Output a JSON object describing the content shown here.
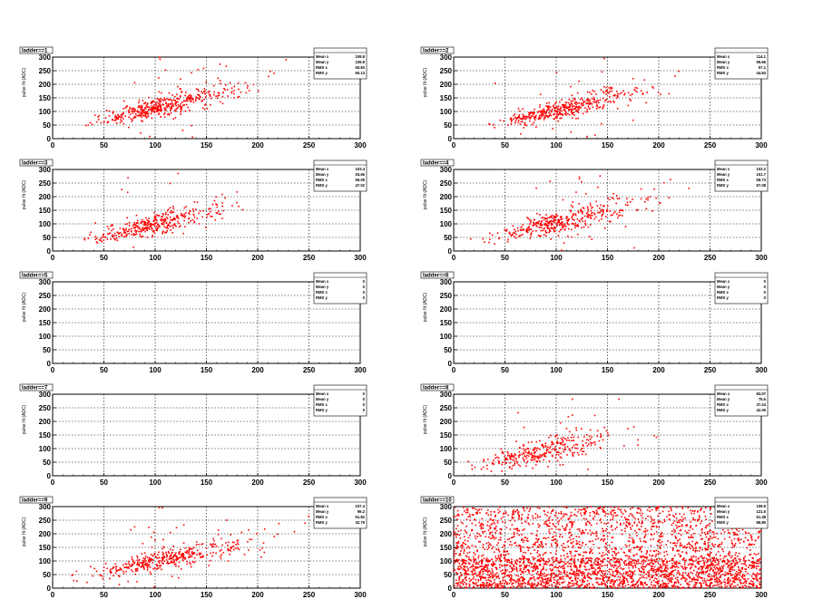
{
  "chart_data": [
    {
      "type": "scatter",
      "title": "ladder==1",
      "ylabel": "pulse fit (ADC)",
      "xlim": [
        0,
        300
      ],
      "ylim": [
        0,
        300
      ],
      "x_ticks": [
        "0",
        "50",
        "100",
        "150",
        "200",
        "250",
        "300"
      ],
      "y_ticks": [
        "0",
        "50",
        "100",
        "150",
        "200",
        "250",
        "300"
      ],
      "stats": {
        "labels": [
          "Mean x",
          "Mean y",
          "RMS x",
          "RMS y"
        ],
        "values": [
          "109.8",
          "109.8",
          "60.83",
          "60.13"
        ]
      },
      "trend": {
        "x0": 20,
        "y0": 40,
        "slope": 0.92,
        "x_mean": 85,
        "x_sd": 45,
        "y_sd": 18,
        "n": 470,
        "seed": 11
      },
      "color": "#ff0000"
    },
    {
      "type": "scatter",
      "title": "ladder==2",
      "ylabel": "pulse fit (ADC)",
      "xlim": [
        0,
        300
      ],
      "ylim": [
        0,
        300
      ],
      "x_ticks": [
        "0",
        "50",
        "100",
        "150",
        "200",
        "250",
        "300"
      ],
      "y_ticks": [
        "0",
        "50",
        "100",
        "150",
        "200",
        "250",
        "300"
      ],
      "stats": {
        "labels": [
          "Mean x",
          "Mean y",
          "RMS x",
          "RMS y"
        ],
        "values": [
          "114.1",
          "95.66",
          "57.1",
          "44.84"
        ]
      },
      "trend": {
        "x0": 20,
        "y0": 35,
        "slope": 0.85,
        "x_mean": 85,
        "x_sd": 45,
        "y_sd": 16,
        "n": 440,
        "seed": 23
      },
      "color": "#ff0000"
    },
    {
      "type": "scatter",
      "title": "ladder==3",
      "ylabel": "pulse fit (ADC)",
      "xlim": [
        0,
        300
      ],
      "ylim": [
        0,
        300
      ],
      "x_ticks": [
        "0",
        "50",
        "100",
        "150",
        "200",
        "250",
        "300"
      ],
      "y_ticks": [
        "0",
        "50",
        "100",
        "150",
        "200",
        "250",
        "300"
      ],
      "stats": {
        "labels": [
          "Mean x",
          "Mean y",
          "RMS x",
          "RMS y"
        ],
        "values": [
          "103.4",
          "93.66",
          "59.09",
          "47.02"
        ]
      },
      "trend": {
        "x0": 30,
        "y0": 35,
        "slope": 0.9,
        "x_mean": 80,
        "x_sd": 40,
        "y_sd": 18,
        "n": 380,
        "seed": 37
      },
      "color": "#ff0000"
    },
    {
      "type": "scatter",
      "title": "ladder==4",
      "ylabel": "pulse fit (ADC)",
      "xlim": [
        0,
        300
      ],
      "ylim": [
        0,
        300
      ],
      "x_ticks": [
        "0",
        "50",
        "100",
        "150",
        "200",
        "250",
        "300"
      ],
      "y_ticks": [
        "0",
        "50",
        "100",
        "150",
        "200",
        "250",
        "300"
      ],
      "stats": {
        "labels": [
          "Mean x",
          "Mean y",
          "RMS x",
          "RMS y"
        ],
        "values": [
          "103.2",
          "101.7",
          "59.73",
          "57.08"
        ]
      },
      "trend": {
        "x0": 10,
        "y0": 30,
        "slope": 0.85,
        "x_mean": 85,
        "x_sd": 48,
        "y_sd": 20,
        "n": 420,
        "seed": 41
      },
      "color": "#ff0000"
    },
    {
      "type": "scatter",
      "title": "ladder==5",
      "ylabel": "pulse fit (ADC)",
      "xlim": [
        0,
        300
      ],
      "ylim": [
        0,
        300
      ],
      "x_ticks": [
        "0",
        "50",
        "100",
        "150",
        "200",
        "250",
        "300"
      ],
      "y_ticks": [
        "0",
        "50",
        "100",
        "150",
        "200",
        "250",
        "300"
      ],
      "stats": {
        "labels": [
          "Mean x",
          "Mean y",
          "RMS x",
          "RMS y"
        ],
        "values": [
          "0",
          "0",
          "0",
          "0"
        ]
      },
      "trend": {
        "n": 0
      },
      "color": "#ff0000"
    },
    {
      "type": "scatter",
      "title": "ladder==6",
      "ylabel": "pulse fit (ADC)",
      "xlim": [
        0,
        300
      ],
      "ylim": [
        0,
        300
      ],
      "x_ticks": [
        "0",
        "50",
        "100",
        "150",
        "200",
        "250",
        "300"
      ],
      "y_ticks": [
        "0",
        "50",
        "100",
        "150",
        "200",
        "250",
        "300"
      ],
      "stats": {
        "labels": [
          "Mean x",
          "Mean y",
          "RMS x",
          "RMS y"
        ],
        "values": [
          "0",
          "0",
          "0",
          "0"
        ]
      },
      "trend": {
        "n": 0
      },
      "color": "#ff0000"
    },
    {
      "type": "scatter",
      "title": "ladder==7",
      "ylabel": "pulse fit (ADC)",
      "xlim": [
        0,
        300
      ],
      "ylim": [
        0,
        300
      ],
      "x_ticks": [
        "0",
        "50",
        "100",
        "150",
        "200",
        "250",
        "300"
      ],
      "y_ticks": [
        "0",
        "50",
        "100",
        "150",
        "200",
        "250",
        "300"
      ],
      "stats": {
        "labels": [
          "Mean x",
          "Mean y",
          "RMS x",
          "RMS y"
        ],
        "values": [
          "0",
          "0",
          "0",
          "0"
        ]
      },
      "trend": {
        "n": 0
      },
      "color": "#ff0000"
    },
    {
      "type": "scatter",
      "title": "ladder==8",
      "ylabel": "pulse fit (ADC)",
      "xlim": [
        0,
        300
      ],
      "ylim": [
        0,
        300
      ],
      "x_ticks": [
        "0",
        "50",
        "100",
        "150",
        "200",
        "250",
        "300"
      ],
      "y_ticks": [
        "0",
        "50",
        "100",
        "150",
        "200",
        "250",
        "300"
      ],
      "stats": {
        "labels": [
          "Mean x",
          "Mean y",
          "RMS x",
          "RMS y"
        ],
        "values": [
          "83.07",
          "75.6",
          "37.24",
          "42.06"
        ]
      },
      "trend": {
        "x0": 10,
        "y0": 30,
        "slope": 0.8,
        "x_mean": 70,
        "x_sd": 45,
        "y_sd": 25,
        "n": 330,
        "seed": 53
      },
      "color": "#ff0000"
    },
    {
      "type": "scatter",
      "title": "ladder==9",
      "ylabel": "pulse fit (ADC)",
      "xlim": [
        0,
        300
      ],
      "ylim": [
        0,
        300
      ],
      "x_ticks": [
        "0",
        "50",
        "100",
        "150",
        "200",
        "250",
        "300"
      ],
      "y_ticks": [
        "0",
        "50",
        "100",
        "150",
        "200",
        "250",
        "300"
      ],
      "stats": {
        "labels": [
          "Mean x",
          "Mean y",
          "RMS x",
          "RMS y"
        ],
        "values": [
          "107.4",
          "99.2",
          "51.82",
          "32.79"
        ]
      },
      "trend": {
        "x0": 15,
        "y0": 30,
        "slope": 0.8,
        "x_mean": 90,
        "x_sd": 50,
        "y_sd": 18,
        "n": 420,
        "seed": 67
      },
      "color": "#ff0000"
    },
    {
      "type": "scatter",
      "title": "ladder==10",
      "ylabel": "pulse fit (ADC)",
      "xlim": [
        0,
        300
      ],
      "ylim": [
        0,
        300
      ],
      "x_ticks": [
        "0",
        "50",
        "100",
        "150",
        "200",
        "250",
        "300"
      ],
      "y_ticks": [
        "0",
        "50",
        "100",
        "150",
        "200",
        "250",
        "300"
      ],
      "stats": {
        "labels": [
          "Mean x",
          "Mean y",
          "RMS x",
          "RMS y"
        ],
        "values": [
          "109.9",
          "121.6",
          "61.38",
          "86.85"
        ]
      },
      "trend": {
        "uniform": true,
        "n": 3400,
        "seed": 79
      },
      "color": "#ff0000"
    }
  ]
}
